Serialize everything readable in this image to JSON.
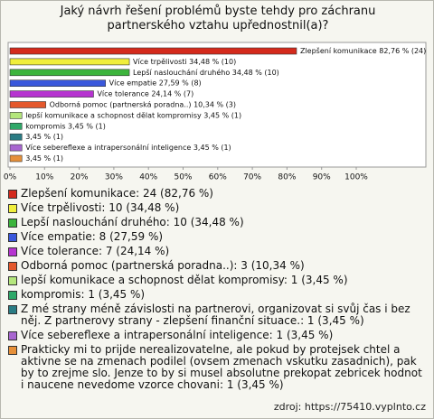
{
  "chart_data": {
    "type": "bar",
    "orientation": "horizontal",
    "title": "Jaký návrh řešení problémů byste tehdy pro záchranu partnerského vztahu upřednostnil(a)?",
    "values": [
      82.76,
      34.48,
      34.48,
      27.59,
      24.14,
      10.34,
      3.45,
      3.45,
      3.45,
      3.45,
      3.45
    ],
    "value_labels": [
      "Zlepšení komunikace 82,76 % (24)",
      "Více trpělivosti 34,48 % (10)",
      "Lepší naslouchání druhého 34,48 % (10)",
      "Více empatie 27,59 % (8)",
      "Více tolerance 24,14 % (7)",
      "Odborná pomoc (partnerská poradna..) 10,34 % (3)",
      "lepší komunikace a schopnost dělat kompromisy 3,45 % (1)",
      "kompromis 3,45 % (1)",
      "3,45 % (1)",
      "Více sebereflexe a intrapersonální inteligence 3,45 % (1)",
      "3,45 % (1)"
    ],
    "colors": [
      "#d42a1c",
      "#f0ee3c",
      "#3cb43c",
      "#3a58dc",
      "#b634d0",
      "#e4582c",
      "#b4e67c",
      "#2ea868",
      "#2a7c84",
      "#a866d0",
      "#e6903a"
    ],
    "legend": [
      "Zlepšení komunikace: 24 (82,76 %)",
      "Více trpělivosti: 10 (34,48 %)",
      "Lepší naslouchání druhého: 10 (34,48 %)",
      "Více empatie: 8 (27,59 %)",
      "Více tolerance: 7 (24,14 %)",
      "Odborná pomoc (partnerská poradna..): 3 (10,34 %)",
      "lepší komunikace a schopnost dělat kompromisy: 1 (3,45 %)",
      "kompromis: 1 (3,45 %)",
      "Z mé strany méně závislosti na partnerovi, organizovat si svůj čas i bez něj. Z partnerovy strany - zlepšení finanční situace.: 1 (3,45 %)",
      "Více sebereflexe a intrapersonální inteligence: 1 (3,45 %)",
      "Prakticky mi to prijde nerealizovatelne, ale pokud by protejsek chtel a aktivne se na zmenach podilel (ovsem zmenach vskutku zasadnich), pak by to zrejme slo. Jenze to by si musel absolutne prekopat zebricek hodnot i naucene nevedome vzorce chovani: 1 (3,45 %)"
    ],
    "xlim": [
      0,
      100
    ],
    "xticks": [
      {
        "value": 0,
        "label": "0%"
      },
      {
        "value": 10,
        "label": "10%"
      },
      {
        "value": 20,
        "label": "20%"
      },
      {
        "value": 30,
        "label": "30%"
      },
      {
        "value": 40,
        "label": "40%"
      },
      {
        "value": 50,
        "label": "50%"
      },
      {
        "value": 60,
        "label": "60%"
      },
      {
        "value": 70,
        "label": "70%"
      },
      {
        "value": 80,
        "label": "80%"
      },
      {
        "value": 90,
        "label": "90%"
      },
      {
        "value": 100,
        "label": "100%"
      }
    ],
    "source": "zdroj: https://75410.vyplnto.cz"
  }
}
